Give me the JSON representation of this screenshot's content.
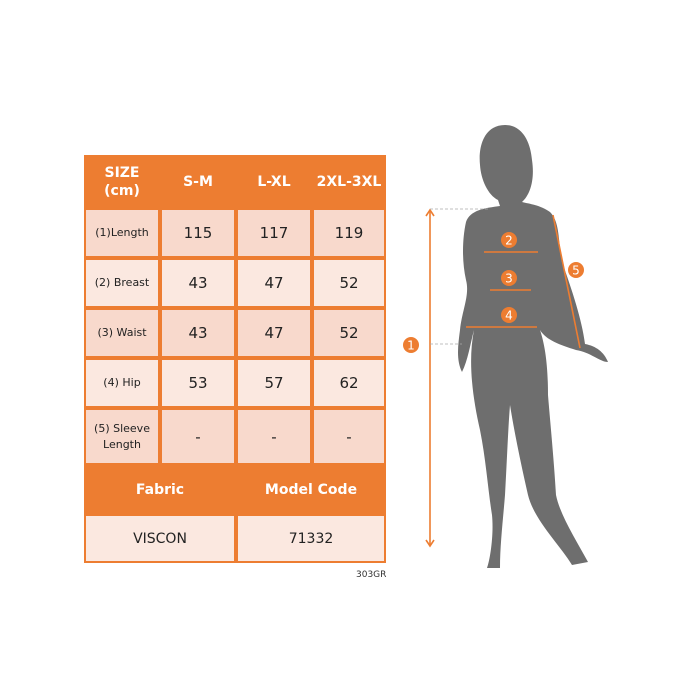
{
  "table": {
    "corner_label_line1": "SIZE",
    "corner_label_line2": "(cm)",
    "sizes": [
      "S-M",
      "L-XL",
      "2XL-3XL"
    ],
    "rows": [
      {
        "label": "(1)Length",
        "values": [
          "115",
          "117",
          "119"
        ]
      },
      {
        "label": "(2) Breast",
        "values": [
          "43",
          "47",
          "52"
        ]
      },
      {
        "label": "(3) Waist",
        "values": [
          "43",
          "47",
          "52"
        ]
      },
      {
        "label": "(4) Hip",
        "values": [
          "53",
          "57",
          "62"
        ]
      },
      {
        "label_line1": "(5) Sleeve",
        "label_line2": "Length",
        "values": [
          "-",
          "-",
          "-"
        ]
      }
    ],
    "fabric_header": "Fabric",
    "model_header": "Model Code",
    "fabric_value": "VISCON",
    "model_value": "71332"
  },
  "product_code": "303GR",
  "figure": {
    "markers": [
      "1",
      "2",
      "3",
      "4",
      "5"
    ]
  },
  "colors": {
    "accent": "#ED7D31",
    "silhouette": "#6E6E6E",
    "cell_dark": "#F8D9CC",
    "cell_light": "#FBE8E0"
  }
}
